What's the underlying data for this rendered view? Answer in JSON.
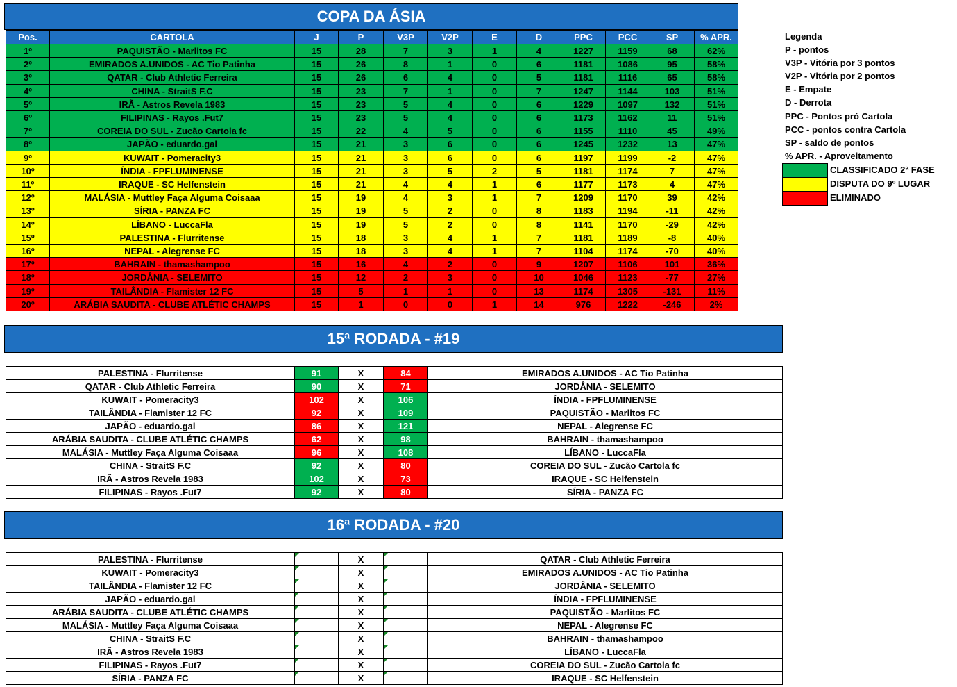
{
  "standings": {
    "title": "COPA DA ÁSIA",
    "headers": [
      "Pos.",
      "CARTOLA",
      "J",
      "P",
      "V3P",
      "V2P",
      "E",
      "D",
      "PPC",
      "PCC",
      "SP",
      "% APR."
    ],
    "rows": [
      [
        "1º",
        "PAQUISTÃO - Marlitos FC",
        15,
        28,
        7,
        3,
        1,
        4,
        1227,
        1159,
        68,
        "62%"
      ],
      [
        "2º",
        "EMIRADOS A.UNIDOS - AC Tio Patinha",
        15,
        26,
        8,
        1,
        0,
        6,
        1181,
        1086,
        95,
        "58%"
      ],
      [
        "3º",
        "QATAR - Club Athletic Ferreira",
        15,
        26,
        6,
        4,
        0,
        5,
        1181,
        1116,
        65,
        "58%"
      ],
      [
        "4º",
        "CHINA - StraitS F.C",
        15,
        23,
        7,
        1,
        0,
        7,
        1247,
        1144,
        103,
        "51%"
      ],
      [
        "5º",
        "IRÃ - Astros Revela 1983",
        15,
        23,
        5,
        4,
        0,
        6,
        1229,
        1097,
        132,
        "51%"
      ],
      [
        "6º",
        "FILIPINAS - Rayos .Fut7",
        15,
        23,
        5,
        4,
        0,
        6,
        1173,
        1162,
        11,
        "51%"
      ],
      [
        "7º",
        "COREIA DO SUL - Zucão Cartola fc",
        15,
        22,
        4,
        5,
        0,
        6,
        1155,
        1110,
        45,
        "49%"
      ],
      [
        "8º",
        "JAPÃO - eduardo.gal",
        15,
        21,
        3,
        6,
        0,
        6,
        1245,
        1232,
        13,
        "47%"
      ],
      [
        "9º",
        "KUWAIT - Pomeracity3",
        15,
        21,
        3,
        6,
        0,
        6,
        1197,
        1199,
        -2,
        "47%"
      ],
      [
        "10º",
        "ÍNDIA - FPFLUMINENSE",
        15,
        21,
        3,
        5,
        2,
        5,
        1181,
        1174,
        7,
        "47%"
      ],
      [
        "11º",
        "IRAQUE - SC Helfenstein",
        15,
        21,
        4,
        4,
        1,
        6,
        1177,
        1173,
        4,
        "47%"
      ],
      [
        "12º",
        "MALÁSIA - Muttley Faça Alguma Coisaaa",
        15,
        19,
        4,
        3,
        1,
        7,
        1209,
        1170,
        39,
        "42%"
      ],
      [
        "13º",
        "SÍRIA - PANZA FC",
        15,
        19,
        5,
        2,
        0,
        8,
        1183,
        1194,
        -11,
        "42%"
      ],
      [
        "14º",
        "LÍBANO - LuccaFla",
        15,
        19,
        5,
        2,
        0,
        8,
        1141,
        1170,
        -29,
        "42%"
      ],
      [
        "15º",
        "PALESTINA - Flurritense",
        15,
        18,
        3,
        4,
        1,
        7,
        1181,
        1189,
        -8,
        "40%"
      ],
      [
        "16º",
        "NEPAL - Alegrense FC",
        15,
        18,
        3,
        4,
        1,
        7,
        1104,
        1174,
        -70,
        "40%"
      ],
      [
        "17º",
        "BAHRAIN - thamashampoo",
        15,
        16,
        4,
        2,
        0,
        9,
        1207,
        1106,
        101,
        "36%"
      ],
      [
        "18º",
        "JORDÂNIA - SELEMITO",
        15,
        12,
        2,
        3,
        0,
        10,
        1046,
        1123,
        -77,
        "27%"
      ],
      [
        "19º",
        "TAILÂNDIA - Flamister 12 FC",
        15,
        5,
        1,
        1,
        0,
        13,
        1174,
        1305,
        -131,
        "11%"
      ],
      [
        "20º",
        "ARÁBIA SAUDITA - CLUBE ATLÉTIC CHAMPS",
        15,
        1,
        0,
        0,
        1,
        14,
        976,
        1222,
        -246,
        "2%"
      ]
    ],
    "row_colors": [
      "#00b050",
      "#00b050",
      "#00b050",
      "#00b050",
      "#00b050",
      "#00b050",
      "#00b050",
      "#00b050",
      "#ffff00",
      "#ffff00",
      "#ffff00",
      "#ffff00",
      "#ffff00",
      "#ffff00",
      "#ffff00",
      "#ffff00",
      "#ff0000",
      "#ff0000",
      "#ff0000",
      "#ff0000"
    ]
  },
  "legend": {
    "title": "Legenda",
    "items": [
      "P - pontos",
      "V3P - Vitória por 3 pontos",
      "V2P - Vitória por 2 pontos",
      "E - Empate",
      "D - Derrota",
      "PPC - Pontos pró Cartola",
      "PCC - pontos contra Cartola",
      "SP - saldo de pontos",
      "% APR. - Aproveitamento"
    ],
    "zones": [
      {
        "label": "CLASSIFICADO 2ª FASE",
        "color": "#00b050"
      },
      {
        "label": "DISPUTA DO 9º LUGAR",
        "color": "#ffff00"
      },
      {
        "label": "ELIMINADO",
        "color": "#ff0000"
      }
    ]
  },
  "rounds": [
    {
      "title": "15ª RODADA - #19",
      "vs_label": "X",
      "matches": [
        {
          "home": "PALESTINA - Flurritense",
          "home_score": 91,
          "away_score": 84,
          "away": "EMIRADOS A.UNIDOS - AC Tio Patinha",
          "colors": [
            "#00b050",
            "#ff0000"
          ]
        },
        {
          "home": "QATAR - Club Athletic Ferreira",
          "home_score": 90,
          "away_score": 71,
          "away": "JORDÂNIA - SELEMITO",
          "colors": [
            "#00b050",
            "#ff0000"
          ]
        },
        {
          "home": "KUWAIT - Pomeracity3",
          "home_score": 102,
          "away_score": 106,
          "away": "ÍNDIA - FPFLUMINENSE",
          "colors": [
            "#ff0000",
            "#00b050"
          ]
        },
        {
          "home": "TAILÂNDIA - Flamister 12 FC",
          "home_score": 92,
          "away_score": 109,
          "away": "PAQUISTÃO - Marlitos FC",
          "colors": [
            "#ff0000",
            "#00b050"
          ]
        },
        {
          "home": "JAPÃO - eduardo.gal",
          "home_score": 86,
          "away_score": 121,
          "away": "NEPAL - Alegrense FC",
          "colors": [
            "#ff0000",
            "#00b050"
          ]
        },
        {
          "home": "ARÁBIA SAUDITA - CLUBE ATLÉTIC CHAMPS",
          "home_score": 62,
          "away_score": 98,
          "away": "BAHRAIN - thamashampoo",
          "colors": [
            "#ff0000",
            "#00b050"
          ]
        },
        {
          "home": "MALÁSIA - Muttley Faça Alguma Coisaaa",
          "home_score": 96,
          "away_score": 108,
          "away": "LÍBANO - LuccaFla",
          "colors": [
            "#ff0000",
            "#00b050"
          ]
        },
        {
          "home": "CHINA - StraitS F.C",
          "home_score": 92,
          "away_score": 80,
          "away": "COREIA DO SUL - Zucão Cartola fc",
          "colors": [
            "#00b050",
            "#ff0000"
          ]
        },
        {
          "home": "IRÃ - Astros Revela 1983",
          "home_score": 102,
          "away_score": 73,
          "away": "IRAQUE - SC Helfenstein",
          "colors": [
            "#00b050",
            "#ff0000"
          ]
        },
        {
          "home": "FILIPINAS - Rayos .Fut7",
          "home_score": 92,
          "away_score": 80,
          "away": "SÍRIA - PANZA FC",
          "colors": [
            "#00b050",
            "#ff0000"
          ]
        }
      ]
    },
    {
      "title": "16ª RODADA - #20",
      "vs_label": "X",
      "matches": [
        {
          "home": "PALESTINA - Flurritense",
          "away": "QATAR - Club Athletic Ferreira"
        },
        {
          "home": "KUWAIT - Pomeracity3",
          "away": "EMIRADOS A.UNIDOS - AC Tio Patinha"
        },
        {
          "home": "TAILÂNDIA - Flamister 12 FC",
          "away": "JORDÂNIA - SELEMITO"
        },
        {
          "home": "JAPÃO - eduardo.gal",
          "away": "ÍNDIA - FPFLUMINENSE"
        },
        {
          "home": "ARÁBIA SAUDITA - CLUBE ATLÉTIC CHAMPS",
          "away": "PAQUISTÃO - Marlitos FC"
        },
        {
          "home": "MALÁSIA - Muttley Faça Alguma Coisaaa",
          "away": "NEPAL - Alegrense FC"
        },
        {
          "home": "CHINA - StraitS F.C",
          "away": "BAHRAIN - thamashampoo"
        },
        {
          "home": "IRÃ - Astros Revela 1983",
          "away": "LÍBANO - LuccaFla"
        },
        {
          "home": "FILIPINAS - Rayos .Fut7",
          "away": "COREIA DO SUL - Zucão Cartola fc"
        },
        {
          "home": "SÍRIA - PANZA FC",
          "away": "IRAQUE - SC Helfenstein"
        }
      ]
    }
  ]
}
